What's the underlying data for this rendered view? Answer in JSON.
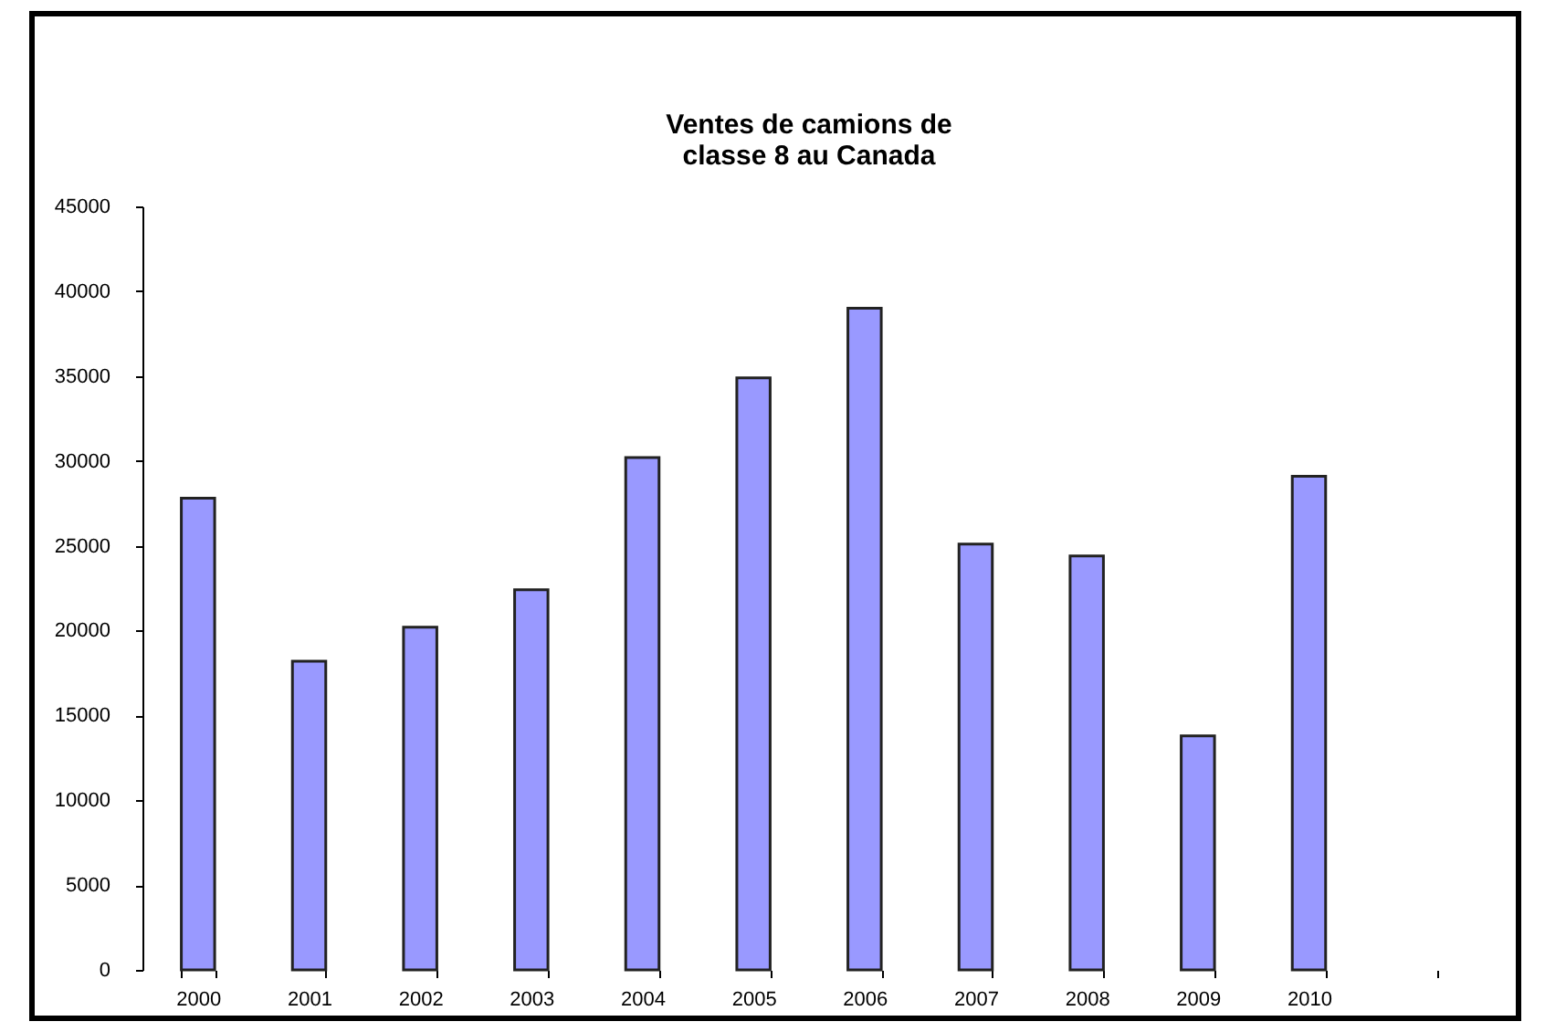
{
  "chart_data": {
    "type": "bar",
    "title": "Ventes de camions de\nclasse 8 au Canada",
    "categories": [
      "2000",
      "2001",
      "2002",
      "2003",
      "2004",
      "2005",
      "2006",
      "2007",
      "2008",
      "2009",
      "2010",
      null
    ],
    "values": [
      27800,
      18200,
      20200,
      22400,
      30200,
      34900,
      39000,
      25100,
      24400,
      13800,
      29100,
      null
    ],
    "color": "#9999ff",
    "ylim": [
      0,
      45000
    ],
    "yticks": [
      0,
      5000,
      10000,
      15000,
      20000,
      25000,
      30000,
      35000,
      40000,
      45000
    ],
    "grid": false
  }
}
